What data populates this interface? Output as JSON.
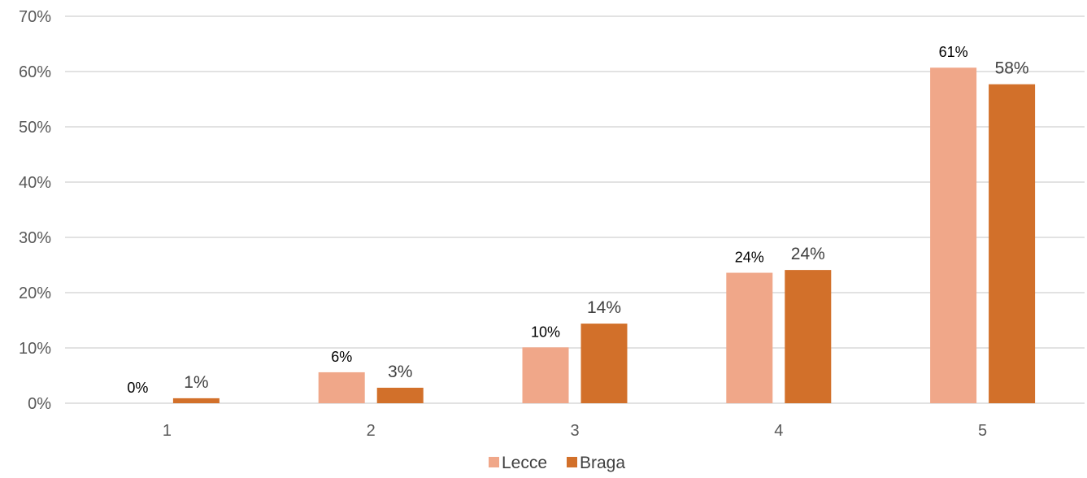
{
  "chart_data": {
    "type": "bar",
    "categories": [
      "1",
      "2",
      "3",
      "4",
      "5"
    ],
    "series": [
      {
        "name": "Lecce",
        "values": [
          0,
          5.6,
          10.1,
          23.6,
          60.7
        ],
        "labels": [
          "0%",
          "6%",
          "10%",
          "24%",
          "61%"
        ],
        "color": "#F0A789"
      },
      {
        "name": "Braga",
        "values": [
          0.9,
          2.8,
          14.4,
          24.1,
          57.7
        ],
        "labels": [
          "1%",
          "3%",
          "14%",
          "24%",
          "58%"
        ],
        "color": "#D2702A"
      }
    ],
    "ylim": [
      0,
      70
    ],
    "yticks": [
      "0%",
      "10%",
      "20%",
      "30%",
      "40%",
      "50%",
      "60%",
      "70%"
    ],
    "grid": true,
    "legend": "bottom",
    "gridline_color": "#D9D9D9"
  }
}
